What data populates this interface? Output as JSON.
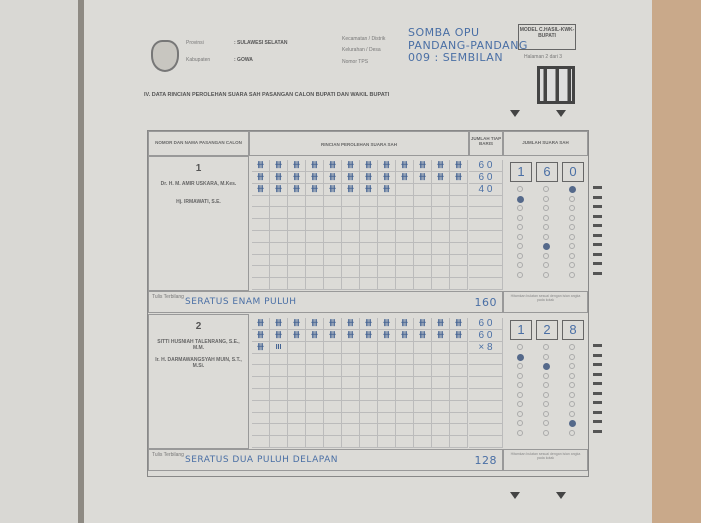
{
  "header": {
    "provinsi_label": "Provinsi",
    "provinsi": ": SULAWESI SELATAN",
    "kabupaten_label": "Kabupaten",
    "kabupaten": ": GOWA",
    "kecamatan_label": "Kecamatan / Distrik",
    "kecamatan": "SOMBA OPU",
    "kelurahan_label": "Kelurahan / Desa",
    "kelurahan": "PANDANG-PANDANG",
    "tps_label": "Nomor TPS",
    "tps": "009 : SEMBILAN",
    "model": "MODEL C.HASIL-KWK-BUPATI",
    "halaman": "Halaman 2 dari 3"
  },
  "section_title": "IV.  DATA RINCIAN PEROLEHAN SUARA SAH PASANGAN CALON BUPATI DAN WAKIL BUPATI",
  "table_headers": {
    "candidate": "NOMOR DAN NAMA PASANGAN CALON",
    "detail": "RINCIAN PEROLEHAN SUARA SAH",
    "row_total": "JUMLAH TIAP BARIS",
    "total": "JUMLAH SUARA SAH"
  },
  "words_label": "Tulis Terbilang",
  "fill_note": "Hitamkan bulatan sesuai dengan isian angka pada kotak",
  "candidates": [
    {
      "number": "1",
      "name1": "Dr. H. M. AMIR USKARA, M.Kes.",
      "name2": "Hj. IRMAWATI, S.E.",
      "tally_rows": [
        12,
        12,
        8
      ],
      "row_totals": [
        "6 0",
        "6 0",
        "4 0"
      ],
      "total_digits": [
        "1",
        "6",
        "0"
      ],
      "total": "160",
      "words": "SERATUS  ENAM  PULUH"
    },
    {
      "number": "2",
      "name1": "SITTI HUSNIAH TALENRANG, S.E., M.M.",
      "name2": "Ir. H. DARMAWANGSYAH MUIN, S.T., M.Si.",
      "tally_rows": [
        12,
        12,
        2
      ],
      "row_totals": [
        "6 0",
        "6 0",
        "× 8"
      ],
      "total_digits": [
        "1",
        "2",
        "8"
      ],
      "total": "128",
      "words": "SERATUS DUA PULUH DELAPAN"
    }
  ],
  "tally_mark": "卌",
  "tally_partial": "III",
  "colors": {
    "ink": "#4a6fa5",
    "paper": "#dcdbd7",
    "bubble_fill": "#55698a"
  }
}
